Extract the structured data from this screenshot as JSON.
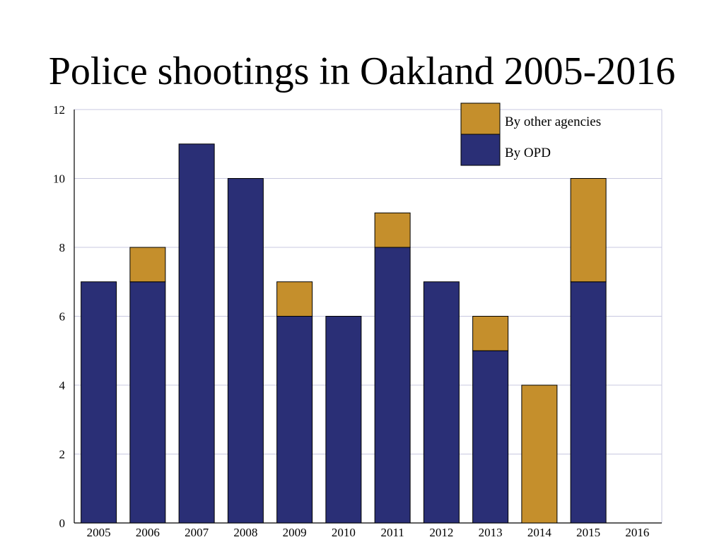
{
  "chart_data": {
    "type": "bar",
    "stacked": true,
    "title": "Police shootings in Oakland 2005-2016",
    "xlabel": "",
    "ylabel": "",
    "categories": [
      "2005",
      "2006",
      "2007",
      "2008",
      "2009",
      "2010",
      "2011",
      "2012",
      "2013",
      "2014",
      "2015",
      "2016"
    ],
    "series": [
      {
        "name": "By OPD",
        "color": "#2a2f76",
        "values": [
          7,
          7,
          11,
          10,
          6,
          6,
          8,
          7,
          5,
          0,
          7,
          0
        ]
      },
      {
        "name": "By other agencies",
        "color": "#c58f2c",
        "values": [
          0,
          1,
          0,
          0,
          1,
          0,
          1,
          0,
          1,
          4,
          3,
          0
        ]
      }
    ],
    "ylim": [
      0,
      12
    ],
    "yticks": [
      "0",
      "2",
      "4",
      "6",
      "8",
      "10",
      "12"
    ],
    "grid": true,
    "legend_position": "top-right",
    "legend_order": [
      "By other agencies",
      "By OPD"
    ]
  }
}
